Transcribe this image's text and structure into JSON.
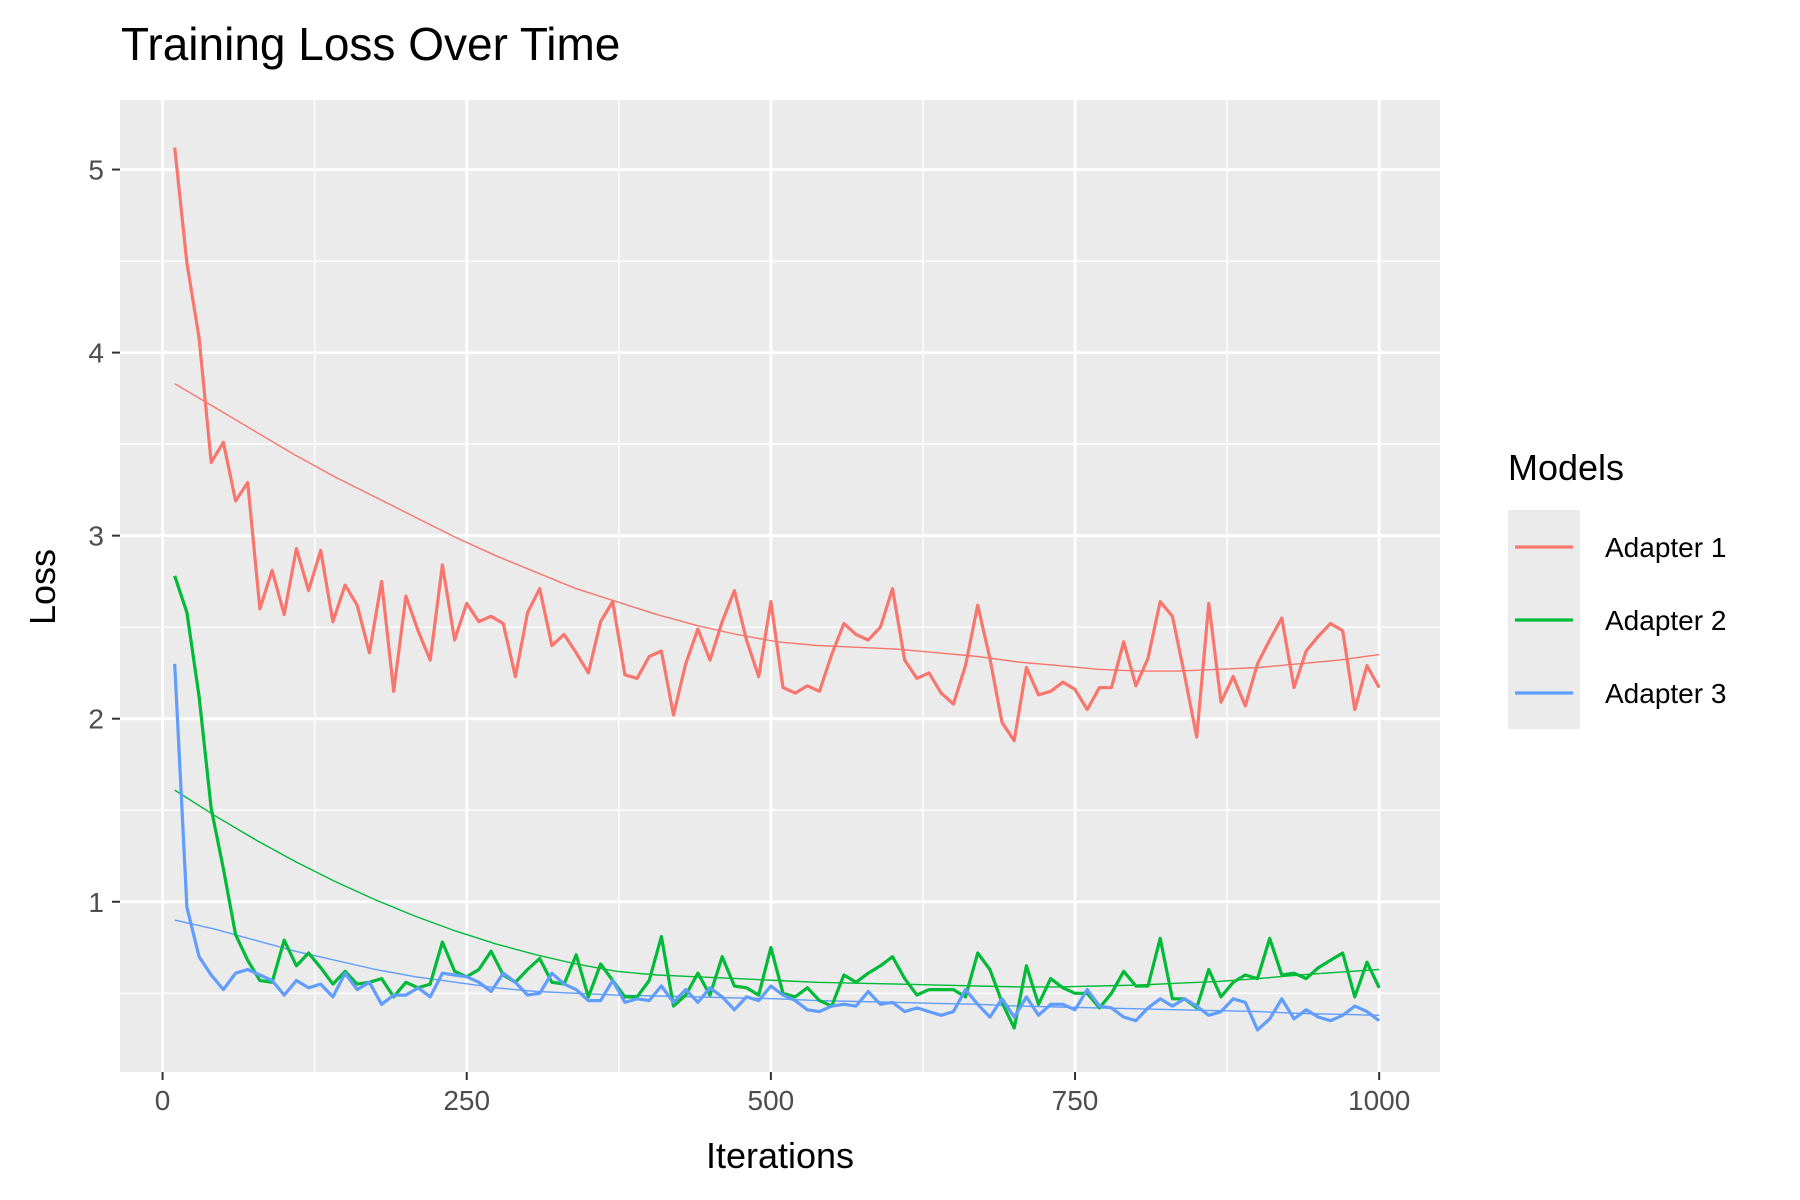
{
  "chart_data": {
    "type": "line",
    "title": "Training Loss Over Time",
    "xlabel": "Iterations",
    "ylabel": "Loss",
    "xlim": [
      -35,
      1050
    ],
    "ylim": [
      0.07,
      5.38
    ],
    "x_ticks": [
      0,
      250,
      500,
      750,
      1000
    ],
    "x_tick_labels": [
      "0",
      "250",
      "500",
      "750",
      "1000"
    ],
    "x_minor_ticks": [
      125,
      375,
      625,
      875
    ],
    "y_ticks": [
      1,
      2,
      3,
      4,
      5
    ],
    "y_tick_labels": [
      "1",
      "2",
      "3",
      "4",
      "5"
    ],
    "y_minor_ticks": [
      0.5,
      1.5,
      2.5,
      3.5,
      4.5
    ],
    "grid": true,
    "panel_background": "#ebebeb",
    "legend": {
      "title": "Models",
      "position": "right"
    },
    "x": [
      10,
      20,
      30,
      40,
      50,
      60,
      70,
      80,
      90,
      100,
      110,
      120,
      130,
      140,
      150,
      160,
      170,
      180,
      190,
      200,
      210,
      220,
      230,
      240,
      250,
      260,
      270,
      280,
      290,
      300,
      310,
      320,
      330,
      340,
      350,
      360,
      370,
      380,
      390,
      400,
      410,
      420,
      430,
      440,
      450,
      460,
      470,
      480,
      490,
      500,
      510,
      520,
      530,
      540,
      550,
      560,
      570,
      580,
      590,
      600,
      610,
      620,
      630,
      640,
      650,
      660,
      670,
      680,
      690,
      700,
      710,
      720,
      730,
      740,
      750,
      760,
      770,
      780,
      790,
      800,
      810,
      820,
      830,
      840,
      850,
      860,
      870,
      880,
      890,
      900,
      910,
      920,
      930,
      940,
      950,
      960,
      970,
      980,
      990,
      1000
    ],
    "series": [
      {
        "name": "Adapter 1",
        "color": "#f8766d",
        "values": [
          5.12,
          4.49,
          4.08,
          3.4,
          3.51,
          3.19,
          3.29,
          2.6,
          2.81,
          2.57,
          2.93,
          2.7,
          2.92,
          2.53,
          2.73,
          2.62,
          2.36,
          2.75,
          2.15,
          2.67,
          2.48,
          2.32,
          2.84,
          2.43,
          2.63,
          2.53,
          2.56,
          2.52,
          2.23,
          2.58,
          2.71,
          2.4,
          2.46,
          2.36,
          2.25,
          2.53,
          2.64,
          2.24,
          2.22,
          2.34,
          2.37,
          2.02,
          2.3,
          2.49,
          2.32,
          2.53,
          2.7,
          2.43,
          2.23,
          2.64,
          2.17,
          2.14,
          2.18,
          2.15,
          2.35,
          2.52,
          2.46,
          2.43,
          2.5,
          2.71,
          2.32,
          2.22,
          2.25,
          2.14,
          2.08,
          2.29,
          2.62,
          2.33,
          1.98,
          1.88,
          2.28,
          2.13,
          2.15,
          2.2,
          2.16,
          2.05,
          2.17,
          2.17,
          2.42,
          2.18,
          2.33,
          2.64,
          2.56,
          2.24,
          1.9,
          2.63,
          2.09,
          2.23,
          2.07,
          2.3,
          2.43,
          2.55,
          2.17,
          2.37,
          2.45,
          2.52,
          2.48,
          2.05,
          2.29,
          2.17
        ],
        "trend": [
          3.83,
          3.7,
          3.57,
          3.44,
          3.32,
          3.21,
          3.1,
          2.99,
          2.89,
          2.8,
          2.71,
          2.64,
          2.57,
          2.51,
          2.46,
          2.42,
          2.4,
          2.39,
          2.38,
          2.36,
          2.34,
          2.31,
          2.29,
          2.27,
          2.26,
          2.26,
          2.27,
          2.28,
          2.3,
          2.32,
          2.35
        ]
      },
      {
        "name": "Adapter 2",
        "color": "#00ba38",
        "values": [
          2.78,
          2.58,
          2.12,
          1.51,
          1.18,
          0.82,
          0.68,
          0.57,
          0.56,
          0.79,
          0.65,
          0.72,
          0.64,
          0.55,
          0.62,
          0.55,
          0.56,
          0.58,
          0.48,
          0.56,
          0.53,
          0.55,
          0.78,
          0.62,
          0.59,
          0.63,
          0.73,
          0.6,
          0.56,
          0.63,
          0.69,
          0.56,
          0.55,
          0.71,
          0.48,
          0.66,
          0.57,
          0.48,
          0.48,
          0.57,
          0.81,
          0.43,
          0.49,
          0.61,
          0.49,
          0.7,
          0.54,
          0.53,
          0.49,
          0.75,
          0.5,
          0.48,
          0.53,
          0.46,
          0.43,
          0.6,
          0.56,
          0.61,
          0.65,
          0.7,
          0.58,
          0.49,
          0.52,
          0.52,
          0.52,
          0.48,
          0.72,
          0.63,
          0.45,
          0.31,
          0.65,
          0.44,
          0.58,
          0.53,
          0.5,
          0.5,
          0.42,
          0.5,
          0.62,
          0.54,
          0.54,
          0.8,
          0.47,
          0.47,
          0.42,
          0.63,
          0.48,
          0.56,
          0.6,
          0.58,
          0.8,
          0.6,
          0.61,
          0.58,
          0.64,
          0.68,
          0.72,
          0.48,
          0.67,
          0.53
        ],
        "trend": [
          1.61,
          1.47,
          1.34,
          1.22,
          1.11,
          1.01,
          0.92,
          0.84,
          0.77,
          0.71,
          0.66,
          0.62,
          0.6,
          0.59,
          0.58,
          0.57,
          0.56,
          0.555,
          0.55,
          0.545,
          0.54,
          0.535,
          0.535,
          0.54,
          0.545,
          0.555,
          0.565,
          0.58,
          0.6,
          0.615,
          0.63
        ]
      },
      {
        "name": "Adapter 3",
        "color": "#619cff",
        "values": [
          2.3,
          0.97,
          0.7,
          0.6,
          0.52,
          0.61,
          0.63,
          0.6,
          0.57,
          0.49,
          0.57,
          0.53,
          0.55,
          0.48,
          0.61,
          0.52,
          0.56,
          0.44,
          0.49,
          0.49,
          0.53,
          0.48,
          0.61,
          0.6,
          0.59,
          0.56,
          0.51,
          0.61,
          0.56,
          0.49,
          0.5,
          0.61,
          0.55,
          0.52,
          0.46,
          0.46,
          0.57,
          0.45,
          0.47,
          0.46,
          0.54,
          0.45,
          0.52,
          0.45,
          0.53,
          0.48,
          0.41,
          0.48,
          0.46,
          0.54,
          0.49,
          0.46,
          0.41,
          0.4,
          0.43,
          0.44,
          0.43,
          0.51,
          0.44,
          0.45,
          0.4,
          0.42,
          0.4,
          0.38,
          0.4,
          0.52,
          0.44,
          0.37,
          0.47,
          0.37,
          0.48,
          0.38,
          0.44,
          0.44,
          0.41,
          0.52,
          0.43,
          0.42,
          0.37,
          0.35,
          0.42,
          0.47,
          0.43,
          0.47,
          0.43,
          0.38,
          0.4,
          0.47,
          0.45,
          0.3,
          0.36,
          0.47,
          0.36,
          0.41,
          0.37,
          0.35,
          0.38,
          0.43,
          0.4,
          0.35
        ],
        "trend": [
          0.9,
          0.85,
          0.79,
          0.73,
          0.68,
          0.63,
          0.59,
          0.56,
          0.53,
          0.51,
          0.5,
          0.49,
          0.485,
          0.48,
          0.475,
          0.47,
          0.46,
          0.455,
          0.45,
          0.445,
          0.44,
          0.43,
          0.425,
          0.42,
          0.415,
          0.41,
          0.405,
          0.4,
          0.39,
          0.385,
          0.38
        ]
      }
    ]
  }
}
